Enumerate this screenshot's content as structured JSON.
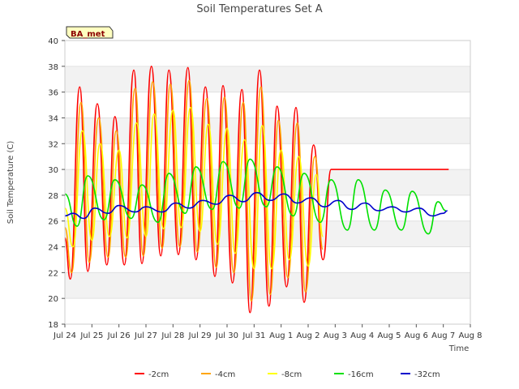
{
  "chart_data": {
    "type": "line",
    "title": "Soil Temperatures Set A",
    "xlabel": "Time",
    "ylabel": "Soil Temperature (C)",
    "ylim": [
      18,
      40
    ],
    "yticks": [
      18,
      20,
      22,
      24,
      26,
      28,
      30,
      32,
      34,
      36,
      38,
      40
    ],
    "xlim": [
      0,
      15
    ],
    "xtick_labels": [
      "Jul 24",
      "Jul 25",
      "Jul 26",
      "Jul 27",
      "Jul 28",
      "Jul 29",
      "Jul 30",
      "Jul 31",
      "Aug 1",
      "Aug 2",
      "Aug 3",
      "Aug 4",
      "Aug 5",
      "Aug 6",
      "Aug 7",
      "Aug 8"
    ],
    "grid": "horizontal bands",
    "legend_position": "bottom",
    "badge": "BA_met",
    "series": [
      {
        "name": "-2cm",
        "color": "#ff0000",
        "x": [
          0.0,
          0.2,
          0.55,
          0.85,
          1.2,
          1.55,
          1.85,
          2.2,
          2.55,
          2.85,
          3.2,
          3.55,
          3.85,
          4.2,
          4.55,
          4.85,
          5.2,
          5.55,
          5.85,
          6.2,
          6.55,
          6.85,
          7.2,
          7.55,
          7.85,
          8.2,
          8.55,
          8.85,
          9.2,
          9.55,
          9.85,
          10.2,
          10.55,
          10.85,
          11.2,
          11.55,
          11.85,
          12.2,
          12.55,
          12.85,
          13.2,
          13.55,
          13.85,
          14.2
        ],
        "y": [
          24.7,
          21.5,
          36.4,
          22.1,
          35.1,
          22.6,
          34.1,
          22.6,
          37.7,
          22.7,
          38.0,
          23.3,
          37.7,
          23.4,
          37.9,
          23.0,
          36.4,
          21.7,
          36.5,
          21.2,
          36.2,
          18.9,
          37.7,
          19.4,
          34.9,
          20.9,
          34.8,
          19.7,
          31.9,
          23.0,
          30,
          30,
          30,
          30,
          30,
          30,
          30,
          30,
          30,
          30,
          30,
          30,
          30,
          30
        ]
      },
      {
        "name": "-4cm",
        "color": "#ffa500",
        "x": [
          0.0,
          0.25,
          0.6,
          0.9,
          1.25,
          1.6,
          1.9,
          2.25,
          2.6,
          2.9,
          3.25,
          3.6,
          3.9,
          4.25,
          4.6,
          4.9,
          5.25,
          5.6,
          5.9,
          6.25,
          6.6,
          6.9,
          7.25,
          7.6,
          7.9,
          8.25,
          8.6,
          8.9,
          9.25,
          9.55
        ],
        "y": [
          25.5,
          22.0,
          35.2,
          22.8,
          34.0,
          23.2,
          33.0,
          23.2,
          36.3,
          23.3,
          36.8,
          23.9,
          36.6,
          24.0,
          36.9,
          23.6,
          35.5,
          22.4,
          35.6,
          22.0,
          35.2,
          19.8,
          36.4,
          20.3,
          33.8,
          21.6,
          33.6,
          20.5,
          31.0,
          23.8
        ]
      },
      {
        "name": "-8cm",
        "color": "#ffff00",
        "x": [
          0.0,
          0.3,
          0.65,
          1.0,
          1.3,
          1.65,
          2.0,
          2.3,
          2.65,
          3.0,
          3.3,
          3.65,
          4.0,
          4.3,
          4.65,
          5.0,
          5.3,
          5.65,
          6.0,
          6.3,
          6.65,
          7.0,
          7.3,
          7.65,
          8.0,
          8.3,
          8.65,
          9.0,
          9.3,
          9.55
        ],
        "y": [
          27.0,
          24.0,
          33.0,
          24.5,
          32.0,
          24.8,
          31.5,
          24.7,
          33.6,
          24.8,
          34.3,
          25.4,
          34.6,
          25.5,
          34.8,
          25.2,
          33.5,
          24.2,
          33.2,
          23.5,
          32.3,
          22.3,
          33.4,
          22.3,
          31.5,
          23.0,
          31.0,
          22.5,
          29.6,
          24.8
        ]
      },
      {
        "name": "-16cm",
        "color": "#00e000",
        "x": [
          0.0,
          0.45,
          0.85,
          1.45,
          1.85,
          2.45,
          2.85,
          3.45,
          3.85,
          4.45,
          4.85,
          5.45,
          5.85,
          6.45,
          6.85,
          7.45,
          7.85,
          8.45,
          8.85,
          9.45,
          9.85,
          10.45,
          10.85,
          11.45,
          11.85,
          12.45,
          12.85,
          13.45,
          13.8,
          14.1
        ],
        "y": [
          28.1,
          25.6,
          29.5,
          26.1,
          29.2,
          26.2,
          28.8,
          25.9,
          29.7,
          26.6,
          30.2,
          26.9,
          30.6,
          27.0,
          30.8,
          27.1,
          30.2,
          26.4,
          29.7,
          25.9,
          29.2,
          25.3,
          29.2,
          25.3,
          28.4,
          25.3,
          28.3,
          25.0,
          27.5,
          26.8
        ]
      },
      {
        "name": "-32cm",
        "color": "#0000cc",
        "x": [
          0.0,
          0.3,
          0.7,
          1.1,
          1.6,
          2.0,
          2.6,
          3.0,
          3.6,
          4.1,
          4.6,
          5.1,
          5.6,
          6.1,
          6.6,
          7.1,
          7.6,
          8.1,
          8.6,
          9.1,
          9.6,
          10.1,
          10.6,
          11.1,
          11.6,
          12.1,
          12.6,
          13.1,
          13.6,
          14.0,
          14.15
        ],
        "y": [
          26.4,
          26.6,
          26.2,
          27.0,
          26.6,
          27.2,
          26.7,
          27.1,
          26.7,
          27.4,
          27.0,
          27.6,
          27.3,
          28.0,
          27.5,
          28.2,
          27.6,
          28.1,
          27.4,
          27.8,
          27.1,
          27.6,
          26.9,
          27.4,
          26.8,
          27.1,
          26.7,
          27.0,
          26.4,
          26.6,
          26.8
        ]
      }
    ]
  }
}
